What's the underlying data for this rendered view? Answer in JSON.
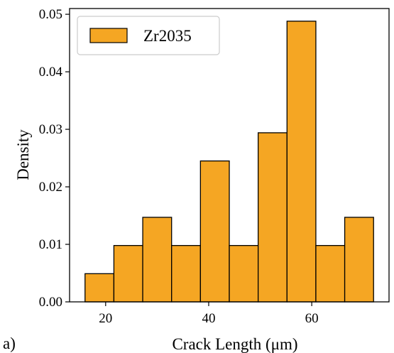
{
  "chart_data": {
    "type": "bar",
    "subtype": "histogram",
    "xlabel": "Crack Length (μm)",
    "ylabel": "Density",
    "xlim": [
      13,
      75
    ],
    "ylim": [
      0,
      0.051
    ],
    "xticks": [
      20,
      40,
      60
    ],
    "yticks": [
      0.0,
      0.01,
      0.02,
      0.03,
      0.04,
      0.05
    ],
    "ytick_labels": [
      "0.00",
      "0.01",
      "0.02",
      "0.03",
      "0.04",
      "0.05"
    ],
    "bins": [
      {
        "x0": 16.0,
        "x1": 21.6,
        "value": 0.0049
      },
      {
        "x0": 21.6,
        "x1": 27.2,
        "value": 0.0098
      },
      {
        "x0": 27.2,
        "x1": 32.8,
        "value": 0.0147
      },
      {
        "x0": 32.8,
        "x1": 38.4,
        "value": 0.0098
      },
      {
        "x0": 38.4,
        "x1": 44.0,
        "value": 0.0245
      },
      {
        "x0": 44.0,
        "x1": 49.6,
        "value": 0.0098
      },
      {
        "x0": 49.6,
        "x1": 55.2,
        "value": 0.0294
      },
      {
        "x0": 55.2,
        "x1": 60.8,
        "value": 0.0488
      },
      {
        "x0": 60.8,
        "x1": 66.4,
        "value": 0.0098
      },
      {
        "x0": 66.4,
        "x1": 72.0,
        "value": 0.0147
      }
    ],
    "series": [
      {
        "name": "Zr2035",
        "color": "#F5A623",
        "edgecolor": "#000000"
      }
    ],
    "legend": {
      "position": "top-left",
      "entries": [
        "Zr2035"
      ]
    },
    "grid": false,
    "panel_label": "a)"
  }
}
